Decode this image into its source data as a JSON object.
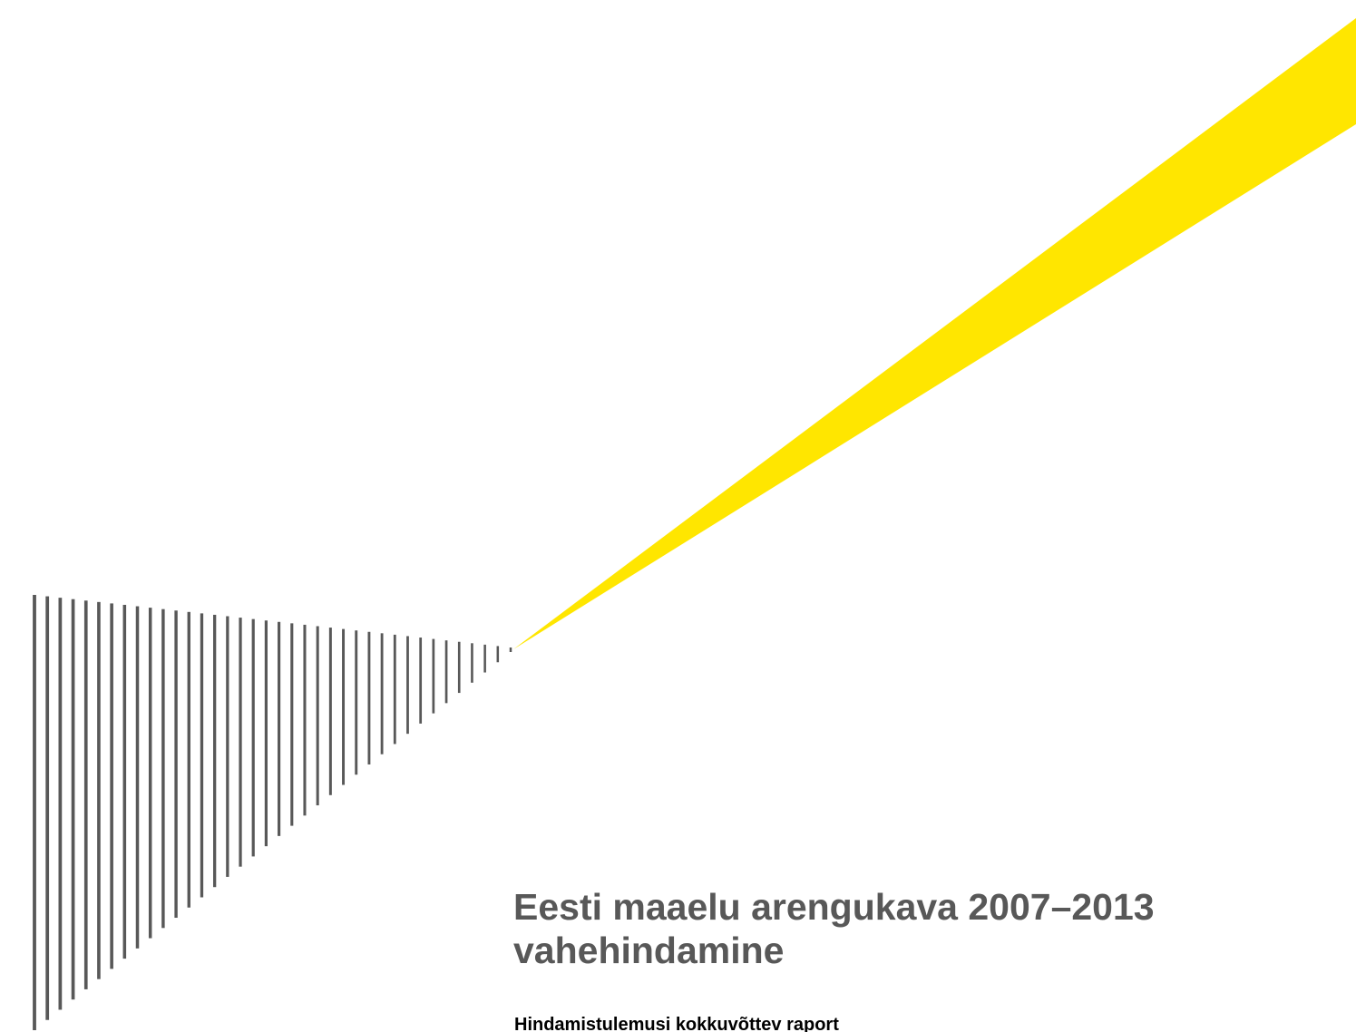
{
  "cover": {
    "title_line1": "Eesti maaelu arengukava 2007–2013",
    "title_line2": "vahehindamine",
    "subtitle": "Hindamistulemusi kokkuvõttev raport",
    "colors": {
      "beam": "#FFE600",
      "stripes": "#585858",
      "title": "#585858",
      "subtitle": "#000000"
    }
  }
}
